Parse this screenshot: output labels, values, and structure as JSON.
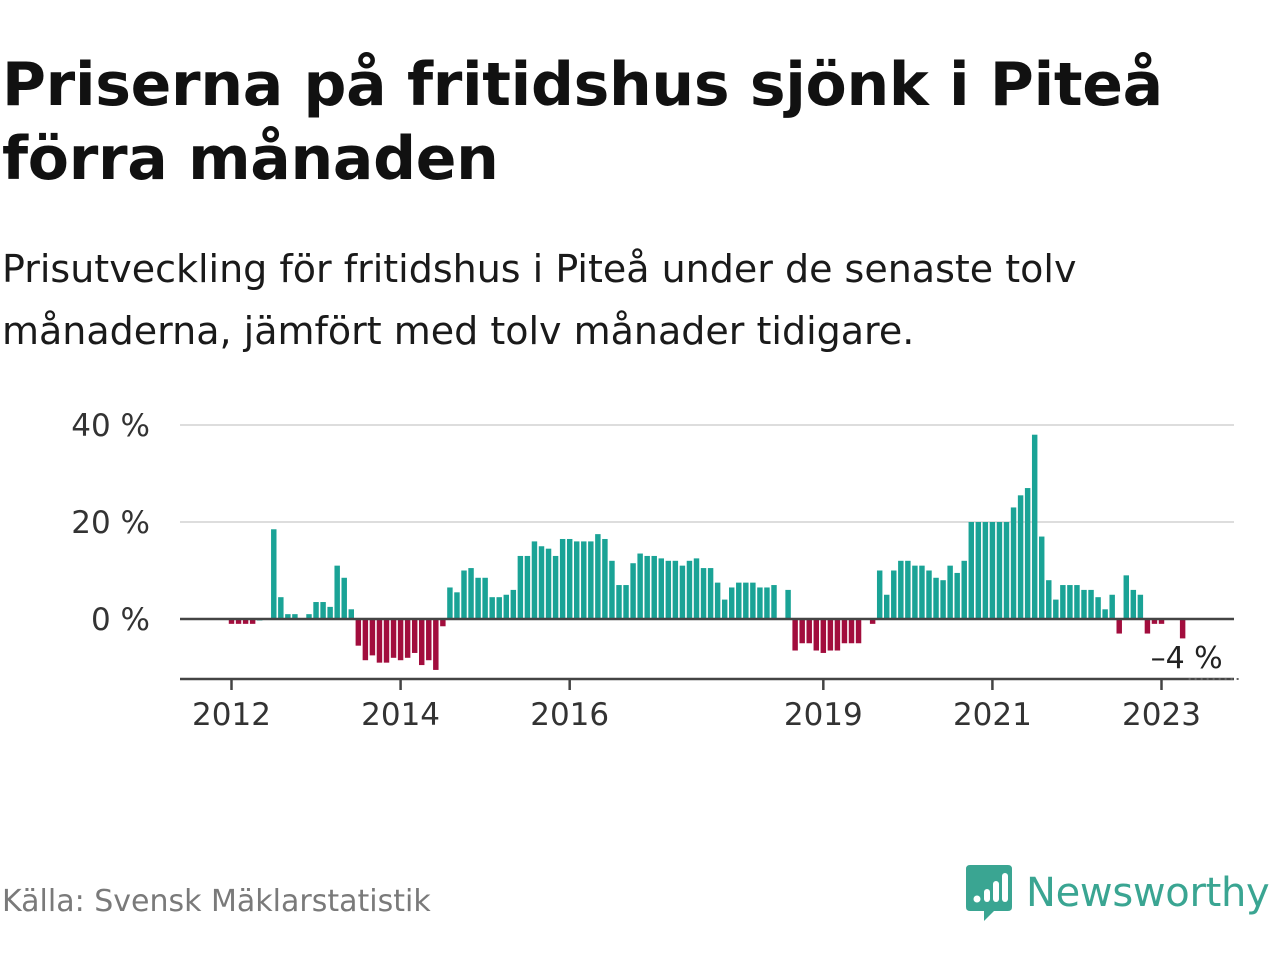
{
  "header": {
    "title": "Priserna på fritidshus sjönk i Piteå förra månaden",
    "subtitle": "Prisutveckling för fritidshus i Piteå under de senaste tolv månaderna, jämfört med tolv månader tidigare."
  },
  "footer": {
    "source": "Källa: Svensk Mäklarstatistik",
    "brand": "Newsworthy",
    "brand_icon": "bar-chart-speech-bubble-icon"
  },
  "colors": {
    "positive": "#1aa396",
    "negative": "#a20d3d",
    "gridline": "#dddddd",
    "baseline": "#444444",
    "brand": "#3aa592"
  },
  "chart_data": {
    "type": "bar",
    "y_unit": "%",
    "x_start": "2011-10",
    "x_end": "2023-08",
    "ylim": [
      -12,
      40
    ],
    "yticks": [
      {
        "value": 40,
        "label": "40 %"
      },
      {
        "value": 20,
        "label": "20 %"
      },
      {
        "value": 0,
        "label": "0 %"
      }
    ],
    "xticks": [
      {
        "date": "2012-01",
        "label": "2012"
      },
      {
        "date": "2014-01",
        "label": "2014"
      },
      {
        "date": "2016-01",
        "label": "2016"
      },
      {
        "date": "2019-01",
        "label": "2019"
      },
      {
        "date": "2021-01",
        "label": "2021"
      },
      {
        "date": "2023-01",
        "label": "2023"
      }
    ],
    "grid": "horizontal",
    "annotation": {
      "date": "2023-04",
      "label": "–4 %",
      "value": -4
    },
    "series": [
      {
        "values": [
          [
            "2011-10",
            null
          ],
          [
            "2011-11",
            null
          ],
          [
            "2011-12",
            null
          ],
          [
            "2012-01",
            -1
          ],
          [
            "2012-02",
            -1
          ],
          [
            "2012-03",
            -1
          ],
          [
            "2012-04",
            -1
          ],
          [
            "2012-05",
            0
          ],
          [
            "2012-06",
            null
          ],
          [
            "2012-07",
            18.5
          ],
          [
            "2012-08",
            4.5
          ],
          [
            "2012-09",
            1
          ],
          [
            "2012-10",
            1
          ],
          [
            "2012-11",
            null
          ],
          [
            "2012-12",
            1
          ],
          [
            "2013-01",
            3.5
          ],
          [
            "2013-02",
            3.5
          ],
          [
            "2013-03",
            2.5
          ],
          [
            "2013-04",
            11
          ],
          [
            "2013-05",
            8.5
          ],
          [
            "2013-06",
            2
          ],
          [
            "2013-07",
            -5.5
          ],
          [
            "2013-08",
            -8.5
          ],
          [
            "2013-09",
            -7.5
          ],
          [
            "2013-10",
            -9
          ],
          [
            "2013-11",
            -9
          ],
          [
            "2013-12",
            -8
          ],
          [
            "2014-01",
            -8.5
          ],
          [
            "2014-02",
            -8
          ],
          [
            "2014-03",
            -7
          ],
          [
            "2014-04",
            -9.5
          ],
          [
            "2014-05",
            -8.5
          ],
          [
            "2014-06",
            -10.5
          ],
          [
            "2014-07",
            -1.5
          ],
          [
            "2014-08",
            6.5
          ],
          [
            "2014-09",
            5.5
          ],
          [
            "2014-10",
            10
          ],
          [
            "2014-11",
            10.5
          ],
          [
            "2014-12",
            8.5
          ],
          [
            "2015-01",
            8.5
          ],
          [
            "2015-02",
            4.5
          ],
          [
            "2015-03",
            4.5
          ],
          [
            "2015-04",
            5
          ],
          [
            "2015-05",
            6
          ],
          [
            "2015-06",
            13
          ],
          [
            "2015-07",
            13
          ],
          [
            "2015-08",
            16
          ],
          [
            "2015-09",
            15
          ],
          [
            "2015-10",
            14.5
          ],
          [
            "2015-11",
            13
          ],
          [
            "2015-12",
            16.5
          ],
          [
            "2016-01",
            16.5
          ],
          [
            "2016-02",
            16
          ],
          [
            "2016-03",
            16
          ],
          [
            "2016-04",
            16
          ],
          [
            "2016-05",
            17.5
          ],
          [
            "2016-06",
            16.5
          ],
          [
            "2016-07",
            12
          ],
          [
            "2016-08",
            7
          ],
          [
            "2016-09",
            7
          ],
          [
            "2016-10",
            11.5
          ],
          [
            "2016-11",
            13.5
          ],
          [
            "2016-12",
            13
          ],
          [
            "2017-01",
            13
          ],
          [
            "2017-02",
            12.5
          ],
          [
            "2017-03",
            12
          ],
          [
            "2017-04",
            12
          ],
          [
            "2017-05",
            11
          ],
          [
            "2017-06",
            12
          ],
          [
            "2017-07",
            12.5
          ],
          [
            "2017-08",
            10.5
          ],
          [
            "2017-09",
            10.5
          ],
          [
            "2017-10",
            7.5
          ],
          [
            "2017-11",
            4
          ],
          [
            "2017-12",
            6.5
          ],
          [
            "2018-01",
            7.5
          ],
          [
            "2018-02",
            7.5
          ],
          [
            "2018-03",
            7.5
          ],
          [
            "2018-04",
            6.5
          ],
          [
            "2018-05",
            6.5
          ],
          [
            "2018-06",
            7
          ],
          [
            "2018-07",
            null
          ],
          [
            "2018-08",
            6
          ],
          [
            "2018-09",
            -6.5
          ],
          [
            "2018-10",
            -5
          ],
          [
            "2018-11",
            -5
          ],
          [
            "2018-12",
            -6.5
          ],
          [
            "2019-01",
            -7
          ],
          [
            "2019-02",
            -6.5
          ],
          [
            "2019-03",
            -6.5
          ],
          [
            "2019-04",
            -5
          ],
          [
            "2019-05",
            -5
          ],
          [
            "2019-06",
            -5
          ],
          [
            "2019-07",
            null
          ],
          [
            "2019-08",
            -1
          ],
          [
            "2019-09",
            10
          ],
          [
            "2019-10",
            5
          ],
          [
            "2019-11",
            10
          ],
          [
            "2019-12",
            12
          ],
          [
            "2020-01",
            12
          ],
          [
            "2020-02",
            11
          ],
          [
            "2020-03",
            11
          ],
          [
            "2020-04",
            10
          ],
          [
            "2020-05",
            8.5
          ],
          [
            "2020-06",
            8
          ],
          [
            "2020-07",
            11
          ],
          [
            "2020-08",
            9.5
          ],
          [
            "2020-09",
            12
          ],
          [
            "2020-10",
            20
          ],
          [
            "2020-11",
            20
          ],
          [
            "2020-12",
            20
          ],
          [
            "2021-01",
            20
          ],
          [
            "2021-02",
            20
          ],
          [
            "2021-03",
            20
          ],
          [
            "2021-04",
            23
          ],
          [
            "2021-05",
            25.5
          ],
          [
            "2021-06",
            27
          ],
          [
            "2021-07",
            38
          ],
          [
            "2021-08",
            17
          ],
          [
            "2021-09",
            8
          ],
          [
            "2021-10",
            4
          ],
          [
            "2021-11",
            7
          ],
          [
            "2021-12",
            7
          ],
          [
            "2022-01",
            7
          ],
          [
            "2022-02",
            6
          ],
          [
            "2022-03",
            6
          ],
          [
            "2022-04",
            4.5
          ],
          [
            "2022-05",
            2
          ],
          [
            "2022-06",
            5
          ],
          [
            "2022-07",
            -3
          ],
          [
            "2022-08",
            9
          ],
          [
            "2022-09",
            6
          ],
          [
            "2022-10",
            5
          ],
          [
            "2022-11",
            -3
          ],
          [
            "2022-12",
            -1
          ],
          [
            "2023-01",
            -1
          ],
          [
            "2023-02",
            null
          ],
          [
            "2023-03",
            null
          ],
          [
            "2023-04",
            -4
          ],
          [
            "2023-05",
            null
          ],
          [
            "2023-06",
            null
          ],
          [
            "2023-07",
            null
          ],
          [
            "2023-08",
            null
          ]
        ]
      }
    ]
  }
}
